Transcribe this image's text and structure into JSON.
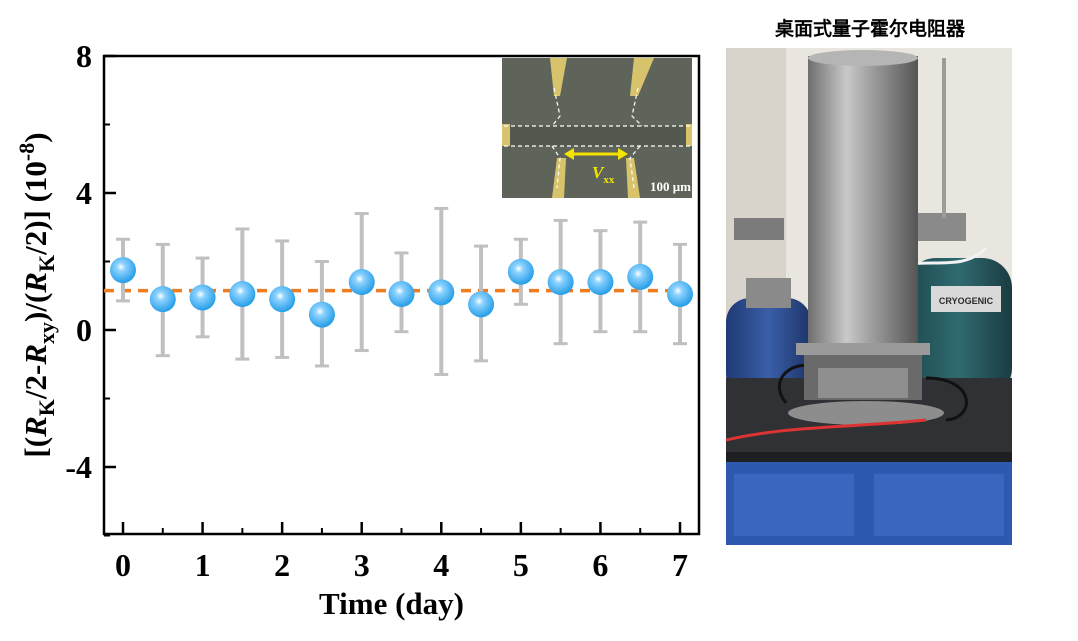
{
  "chart_data": {
    "type": "scatter",
    "xlabel": "Time (day)",
    "ylabel_parts": [
      "[(",
      "R",
      "K",
      "/2-",
      "R",
      "xy",
      ")/(",
      "R",
      "K",
      "/2)] (10",
      "-8",
      ")"
    ],
    "xlim": [
      -0.2,
      7.2
    ],
    "ylim": [
      -6,
      8
    ],
    "xticks": [
      "0",
      "1",
      "2",
      "3",
      "4",
      "5",
      "6",
      "7"
    ],
    "yticks": [
      "-4",
      "0",
      "4",
      "8"
    ],
    "x": [
      0,
      0.5,
      1,
      1.5,
      2,
      2.5,
      3,
      3.5,
      4,
      4.5,
      5,
      5.5,
      6,
      6.5,
      7
    ],
    "y": [
      1.75,
      0.9,
      0.95,
      1.05,
      0.9,
      0.45,
      1.4,
      1.05,
      1.1,
      0.75,
      1.7,
      1.4,
      1.4,
      1.55,
      1.05
    ],
    "yerr_upper": [
      2.65,
      2.5,
      2.1,
      2.95,
      2.6,
      2.0,
      3.4,
      2.25,
      3.55,
      2.45,
      2.65,
      3.2,
      2.9,
      3.15,
      2.5
    ],
    "yerr_lower": [
      0.85,
      -0.75,
      -0.2,
      -0.85,
      -0.8,
      -1.05,
      -0.6,
      -0.05,
      -1.3,
      -0.9,
      0.75,
      -0.4,
      -0.05,
      -0.05,
      -0.4
    ],
    "reference_line": 1.15,
    "colors": {
      "marker": "#1e9ae6",
      "errorbar": "#c0c0c0",
      "reference": "#ee7d22",
      "axis": "#000000"
    },
    "inset": {
      "label_symbol": "V",
      "label_subscript": "xx",
      "scale_text": "100 μm",
      "colors": {
        "substrate": "#5e6459",
        "contact": "#d7c36c",
        "arrow": "#f5e400"
      }
    }
  },
  "photo": {
    "title": "桌面式量子霍尔电阻器",
    "label_text": "CRYOGENIC",
    "colors": {
      "wall": "#e9e6e0",
      "cylinder": "#a8a8a8",
      "dewar": "#2b4a8c",
      "bench": "#2f3135",
      "cabinet": "#2d5ab0"
    }
  }
}
